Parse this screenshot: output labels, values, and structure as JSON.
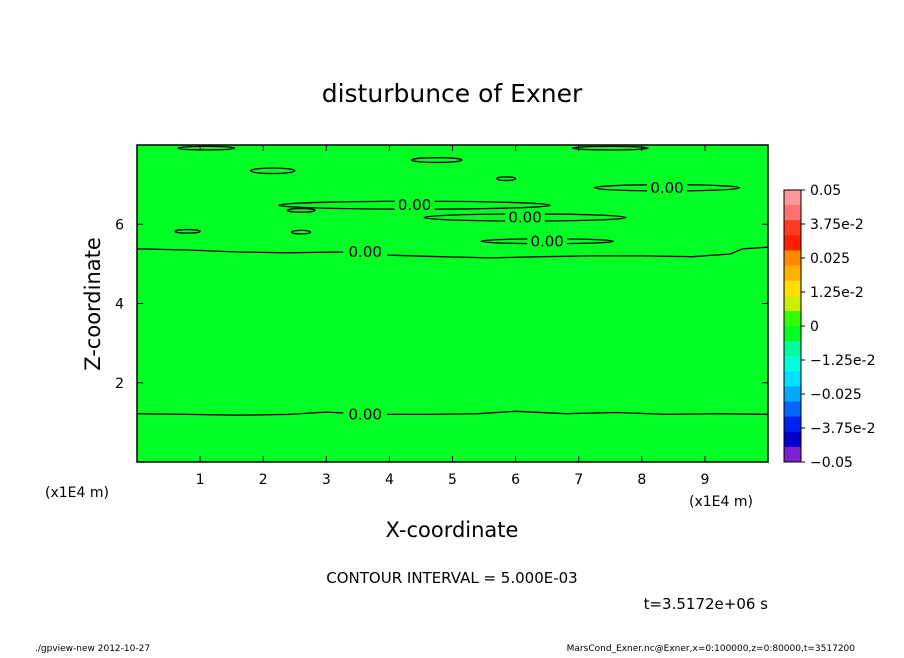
{
  "chart_data": {
    "type": "contour",
    "title": "disturbunce of Exner",
    "xlabel": "X-coordinate",
    "ylabel": "Z-coordinate",
    "x_unit_left": "(x1E4 m)",
    "x_unit_right": "(x1E4 m)",
    "xlim": [
      0,
      10
    ],
    "ylim": [
      0,
      8
    ],
    "xticks": [
      1,
      2,
      3,
      4,
      5,
      6,
      7,
      8,
      9
    ],
    "yticks": [
      2,
      4,
      6
    ],
    "fill_color": "#00ff22",
    "contour_label": "0.00",
    "contours": [
      {
        "label": "0.00",
        "label_pos": [
          3.3,
          1.2
        ],
        "points": [
          [
            0,
            1.22
          ],
          [
            0.8,
            1.2
          ],
          [
            1.6,
            1.18
          ],
          [
            2.4,
            1.2
          ],
          [
            3.0,
            1.26
          ],
          [
            3.8,
            1.2
          ],
          [
            4.6,
            1.2
          ],
          [
            5.4,
            1.22
          ],
          [
            6.0,
            1.28
          ],
          [
            6.8,
            1.22
          ],
          [
            7.6,
            1.25
          ],
          [
            8.4,
            1.2
          ],
          [
            9.2,
            1.22
          ],
          [
            10,
            1.2
          ]
        ]
      },
      {
        "label": "0.00",
        "label_pos": [
          3.3,
          5.3
        ],
        "points": [
          [
            0,
            5.38
          ],
          [
            0.8,
            5.35
          ],
          [
            1.6,
            5.3
          ],
          [
            2.4,
            5.28
          ],
          [
            3.2,
            5.3
          ],
          [
            4.0,
            5.22
          ],
          [
            4.8,
            5.18
          ],
          [
            5.6,
            5.15
          ],
          [
            6.4,
            5.18
          ],
          [
            7.2,
            5.2
          ],
          [
            8.0,
            5.2
          ],
          [
            8.8,
            5.18
          ],
          [
            9.4,
            5.25
          ],
          [
            9.6,
            5.38
          ],
          [
            10,
            5.42
          ]
        ]
      }
    ],
    "closed_contours": [
      {
        "label": "0.00",
        "cx": 4.4,
        "cy": 6.48,
        "rx": 2.15,
        "ry": 0.1
      },
      {
        "label": "0.00",
        "cx": 6.15,
        "cy": 6.17,
        "rx": 1.6,
        "ry": 0.09
      },
      {
        "label": "0.00",
        "cx": 6.5,
        "cy": 5.57,
        "rx": 1.05,
        "ry": 0.06
      },
      {
        "label": "0.00",
        "cx": 8.4,
        "cy": 6.92,
        "rx": 1.15,
        "ry": 0.08
      },
      {
        "label": "",
        "cx": 2.15,
        "cy": 7.35,
        "rx": 0.35,
        "ry": 0.07
      },
      {
        "label": "",
        "cx": 4.75,
        "cy": 7.62,
        "rx": 0.4,
        "ry": 0.06
      },
      {
        "label": "",
        "cx": 5.85,
        "cy": 7.15,
        "rx": 0.15,
        "ry": 0.04
      },
      {
        "label": "",
        "cx": 2.6,
        "cy": 6.35,
        "rx": 0.22,
        "ry": 0.04
      },
      {
        "label": "",
        "cx": 2.6,
        "cy": 5.8,
        "rx": 0.15,
        "ry": 0.03
      },
      {
        "label": "",
        "cx": 0.8,
        "cy": 5.82,
        "rx": 0.2,
        "ry": 0.03
      },
      {
        "label": "",
        "cx": 1.1,
        "cy": 7.92,
        "rx": 0.45,
        "ry": 0.04
      },
      {
        "label": "",
        "cx": 7.5,
        "cy": 7.92,
        "rx": 0.6,
        "ry": 0.03
      }
    ],
    "colorbar": {
      "ticks": [
        "0.05",
        "3.75e-2",
        "0.025",
        "1.25e-2",
        "0",
        "−1.25e-2",
        "−0.025",
        "−3.75e-2",
        "−0.05"
      ],
      "colors_top_to_bottom": [
        "#ff9999",
        "#ff7070",
        "#ff3a22",
        "#ff2000",
        "#ff8a00",
        "#ffb000",
        "#ffdd00",
        "#ccee00",
        "#33ff00",
        "#00ff22",
        "#00ff99",
        "#00ffdd",
        "#00e0ff",
        "#00aaff",
        "#0066ff",
        "#0022ee",
        "#0000cc",
        "#7a22cc"
      ]
    }
  },
  "contour_interval": "CONTOUR INTERVAL = 5.000E-03",
  "time_label": "t=3.5172e+06 s",
  "footer_left": "./gpview-new  2012-10-27",
  "footer_right": "MarsCond_Exner.nc@Exner,x=0:100000,z=0:80000,t=3517200"
}
